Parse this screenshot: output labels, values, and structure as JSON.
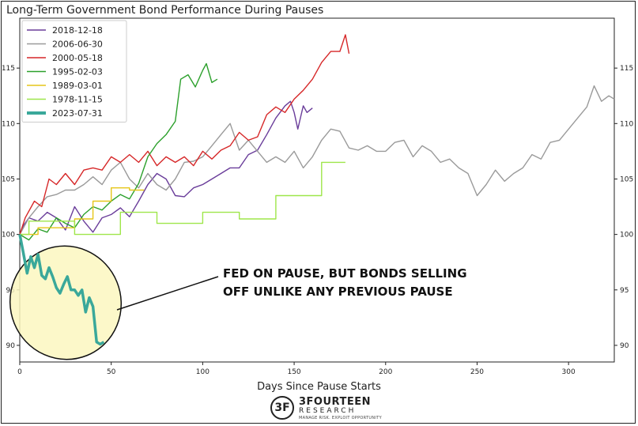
{
  "chart_data": {
    "type": "line",
    "title": "Long-Term Government Bond Performance During Pauses",
    "xlabel": "Days Since Pause Starts",
    "ylabel": "",
    "xlim": [
      0,
      325
    ],
    "ylim": [
      88.5,
      119.5
    ],
    "x_ticks": [
      0,
      50,
      100,
      150,
      200,
      250,
      300
    ],
    "y_ticks": [
      90,
      95,
      100,
      105,
      110,
      115
    ],
    "y_axis_sides": "both",
    "grid": false,
    "legend_position": "top-left",
    "series": [
      {
        "name": "2018-12-18",
        "color": "#6a3d9a",
        "points": [
          [
            0,
            100
          ],
          [
            2,
            100.8
          ],
          [
            5,
            101.5
          ],
          [
            10,
            101.2
          ],
          [
            15,
            102
          ],
          [
            20,
            101.5
          ],
          [
            25,
            100.4
          ],
          [
            30,
            102.5
          ],
          [
            35,
            101.2
          ],
          [
            40,
            100.2
          ],
          [
            45,
            101.5
          ],
          [
            50,
            101.8
          ],
          [
            55,
            102.4
          ],
          [
            60,
            101.6
          ],
          [
            65,
            103
          ],
          [
            70,
            104.5
          ],
          [
            75,
            105.5
          ],
          [
            80,
            105
          ],
          [
            85,
            103.5
          ],
          [
            90,
            103.4
          ],
          [
            95,
            104.2
          ],
          [
            100,
            104.5
          ],
          [
            105,
            105
          ],
          [
            110,
            105.5
          ],
          [
            115,
            106
          ],
          [
            120,
            106
          ],
          [
            125,
            107.2
          ],
          [
            130,
            107.6
          ],
          [
            135,
            109
          ],
          [
            140,
            110.5
          ],
          [
            145,
            111.6
          ],
          [
            148,
            112
          ],
          [
            150,
            111
          ],
          [
            152,
            109.5
          ],
          [
            155,
            111.6
          ],
          [
            157,
            111
          ],
          [
            160,
            111.4
          ]
        ]
      },
      {
        "name": "2006-06-30",
        "color": "#9a9a9a",
        "points": [
          [
            0,
            100
          ],
          [
            5,
            101.5
          ],
          [
            10,
            102.5
          ],
          [
            15,
            103.4
          ],
          [
            20,
            103.6
          ],
          [
            25,
            104
          ],
          [
            30,
            104
          ],
          [
            35,
            104.5
          ],
          [
            40,
            105.2
          ],
          [
            45,
            104.5
          ],
          [
            50,
            105.8
          ],
          [
            55,
            106.5
          ],
          [
            60,
            105
          ],
          [
            65,
            104.2
          ],
          [
            70,
            105.5
          ],
          [
            75,
            104.5
          ],
          [
            80,
            104
          ],
          [
            85,
            105
          ],
          [
            90,
            106.5
          ],
          [
            95,
            106.6
          ],
          [
            100,
            107
          ],
          [
            105,
            108
          ],
          [
            110,
            109
          ],
          [
            115,
            110
          ],
          [
            120,
            107.6
          ],
          [
            125,
            108.5
          ],
          [
            130,
            107.5
          ],
          [
            135,
            106.5
          ],
          [
            140,
            107
          ],
          [
            145,
            106.5
          ],
          [
            150,
            107.5
          ],
          [
            155,
            106
          ],
          [
            160,
            107
          ],
          [
            165,
            108.5
          ],
          [
            170,
            109.5
          ],
          [
            175,
            109.3
          ],
          [
            180,
            107.8
          ],
          [
            185,
            107.6
          ],
          [
            190,
            108
          ],
          [
            195,
            107.5
          ],
          [
            200,
            107.5
          ],
          [
            205,
            108.3
          ],
          [
            210,
            108.5
          ],
          [
            215,
            107
          ],
          [
            220,
            108
          ],
          [
            225,
            107.5
          ],
          [
            230,
            106.5
          ],
          [
            235,
            106.8
          ],
          [
            240,
            106
          ],
          [
            245,
            105.5
          ],
          [
            250,
            103.5
          ],
          [
            255,
            104.5
          ],
          [
            260,
            105.8
          ],
          [
            265,
            104.8
          ],
          [
            270,
            105.5
          ],
          [
            275,
            106
          ],
          [
            280,
            107.2
          ],
          [
            285,
            106.8
          ],
          [
            290,
            108.3
          ],
          [
            295,
            108.5
          ],
          [
            300,
            109.5
          ],
          [
            305,
            110.5
          ],
          [
            310,
            111.5
          ],
          [
            314,
            113.4
          ],
          [
            318,
            112
          ],
          [
            322,
            112.5
          ],
          [
            325,
            112.2
          ]
        ]
      },
      {
        "name": "2000-05-18",
        "color": "#d62728",
        "points": [
          [
            0,
            100
          ],
          [
            3,
            101.5
          ],
          [
            8,
            103
          ],
          [
            12,
            102.5
          ],
          [
            16,
            105
          ],
          [
            20,
            104.5
          ],
          [
            25,
            105.5
          ],
          [
            30,
            104.5
          ],
          [
            35,
            105.8
          ],
          [
            40,
            106
          ],
          [
            45,
            105.8
          ],
          [
            50,
            107
          ],
          [
            55,
            106.5
          ],
          [
            60,
            107.2
          ],
          [
            65,
            106.5
          ],
          [
            70,
            107.5
          ],
          [
            75,
            106.2
          ],
          [
            80,
            107
          ],
          [
            85,
            106.5
          ],
          [
            90,
            107
          ],
          [
            95,
            106.2
          ],
          [
            100,
            107.5
          ],
          [
            105,
            106.8
          ],
          [
            110,
            107.6
          ],
          [
            115,
            108
          ],
          [
            120,
            109.2
          ],
          [
            125,
            108.5
          ],
          [
            130,
            108.8
          ],
          [
            135,
            110.8
          ],
          [
            140,
            111.5
          ],
          [
            145,
            111
          ],
          [
            150,
            112.2
          ],
          [
            155,
            113
          ],
          [
            160,
            114
          ],
          [
            165,
            115.5
          ],
          [
            170,
            116.5
          ],
          [
            175,
            116.5
          ],
          [
            178,
            118
          ],
          [
            180,
            116.3
          ]
        ]
      },
      {
        "name": "1995-02-03",
        "color": "#2ca02c",
        "points": [
          [
            0,
            100
          ],
          [
            5,
            99.5
          ],
          [
            10,
            100.5
          ],
          [
            15,
            100.2
          ],
          [
            20,
            101.5
          ],
          [
            25,
            101
          ],
          [
            30,
            100.6
          ],
          [
            35,
            101.8
          ],
          [
            40,
            102.5
          ],
          [
            45,
            102.2
          ],
          [
            50,
            103
          ],
          [
            55,
            103.6
          ],
          [
            60,
            103.2
          ],
          [
            65,
            104.6
          ],
          [
            70,
            107
          ],
          [
            75,
            108.2
          ],
          [
            80,
            109
          ],
          [
            85,
            110.2
          ],
          [
            88,
            114
          ],
          [
            92,
            114.4
          ],
          [
            96,
            113.3
          ],
          [
            100,
            114.8
          ],
          [
            102,
            115.4
          ],
          [
            105,
            113.7
          ],
          [
            108,
            114
          ]
        ]
      },
      {
        "name": "1989-03-01",
        "color": "#e6c619",
        "points": [
          [
            0,
            100
          ],
          [
            10,
            100
          ],
          [
            10,
            100.6
          ],
          [
            30,
            100.6
          ],
          [
            30,
            101.4
          ],
          [
            40,
            101.4
          ],
          [
            40,
            103
          ],
          [
            50,
            103
          ],
          [
            50,
            104.2
          ],
          [
            60,
            104.2
          ],
          [
            60,
            104
          ],
          [
            68,
            104
          ]
        ]
      },
      {
        "name": "1978-11-15",
        "color": "#9ee64a",
        "points": [
          [
            0,
            100
          ],
          [
            5,
            100
          ],
          [
            5,
            101.2
          ],
          [
            30,
            101.2
          ],
          [
            30,
            100
          ],
          [
            55,
            100
          ],
          [
            55,
            102
          ],
          [
            75,
            102
          ],
          [
            75,
            101
          ],
          [
            100,
            101
          ],
          [
            100,
            102
          ],
          [
            120,
            102
          ],
          [
            120,
            101.4
          ],
          [
            140,
            101.4
          ],
          [
            140,
            103.5
          ],
          [
            165,
            103.5
          ],
          [
            165,
            106.5
          ],
          [
            178,
            106.5
          ]
        ]
      },
      {
        "name": "2023-07-31",
        "color": "#3aa89a",
        "points": [
          [
            0,
            100
          ],
          [
            2,
            98.3
          ],
          [
            4,
            96.5
          ],
          [
            6,
            98
          ],
          [
            8,
            97
          ],
          [
            10,
            98.2
          ],
          [
            12,
            96.3
          ],
          [
            14,
            96
          ],
          [
            16,
            97
          ],
          [
            18,
            96.2
          ],
          [
            20,
            95.2
          ],
          [
            22,
            94.7
          ],
          [
            24,
            95.5
          ],
          [
            26,
            96.2
          ],
          [
            28,
            95
          ],
          [
            30,
            95
          ],
          [
            32,
            94.5
          ],
          [
            34,
            95
          ],
          [
            36,
            93
          ],
          [
            38,
            94.3
          ],
          [
            40,
            93.5
          ],
          [
            42,
            90.3
          ],
          [
            44,
            90.1
          ],
          [
            46,
            90.3
          ]
        ],
        "highlight": true
      }
    ],
    "annotation": {
      "text_line_1": "FED ON PAUSE, BUT BONDS SELLING",
      "text_line_2": "OFF UNLIKE ANY PREVIOUS PAUSE"
    }
  },
  "branding": {
    "logo_mark": "3F",
    "name": "3FOURTEEN",
    "sub": "RESEARCH",
    "tagline": "MANAGE RISK. EXPLOIT OPPORTUNITY"
  }
}
